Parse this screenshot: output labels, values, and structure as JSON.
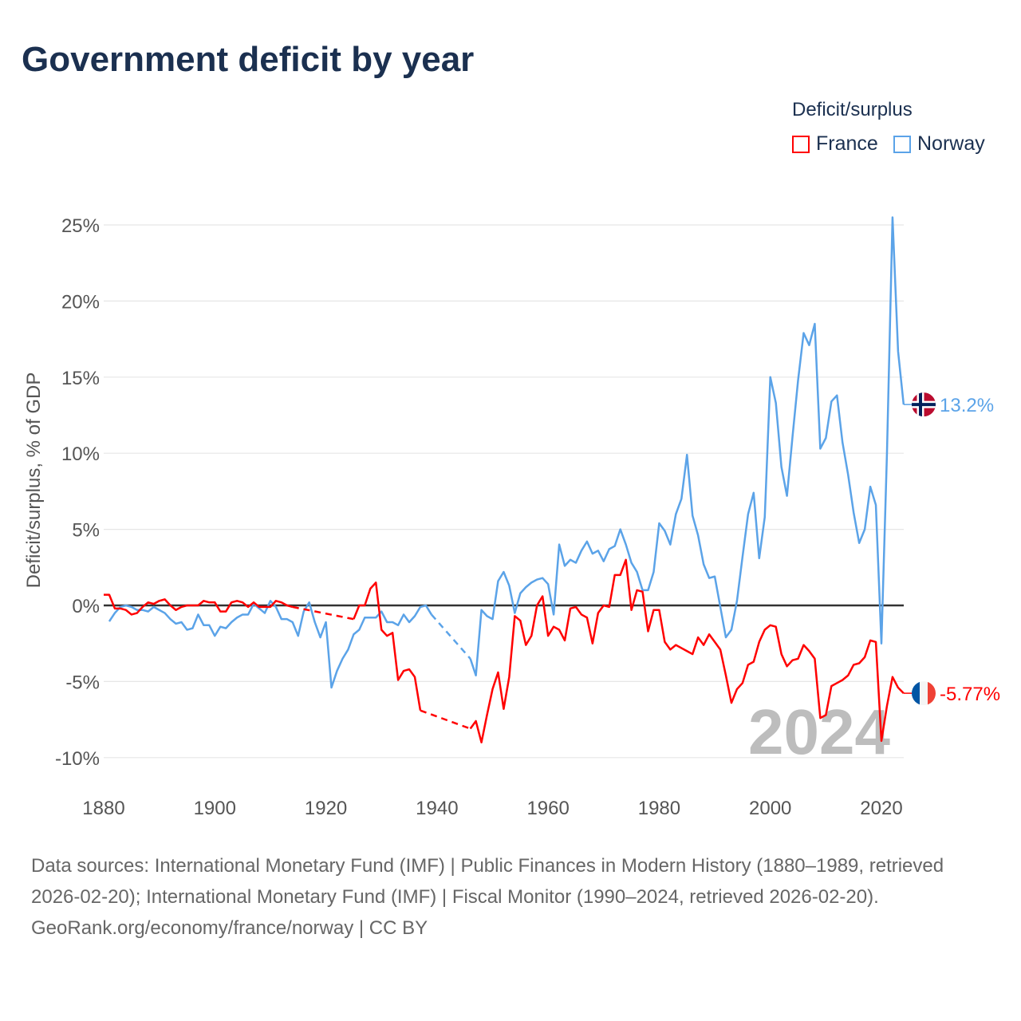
{
  "title": "Government deficit by year",
  "legend": {
    "title": "Deficit/surplus",
    "items": [
      {
        "label": "France",
        "color": "#ff0000"
      },
      {
        "label": "Norway",
        "color": "#5ba3e8"
      }
    ]
  },
  "footer": {
    "sources": "Data sources: International Monetary Fund (IMF) | Public Finances in Modern History (1880–1989, retrieved 2026-02-20); International Monetary Fund (IMF) | Fiscal Monitor (1990–2024, retrieved 2026-02-20).",
    "credit": "GeoRank.org/economy/france/norway | CC BY"
  },
  "chart_data": {
    "type": "line",
    "title": "Government deficit by year",
    "ylabel": "Deficit/surplus, % of GDP",
    "xlabel": "",
    "xlim": [
      1880,
      2024
    ],
    "ylim": [
      -10,
      25
    ],
    "x_ticks": [
      "1880",
      "1900",
      "1920",
      "1940",
      "1960",
      "1980",
      "2000",
      "2020"
    ],
    "y_ticks": [
      "25%",
      "20%",
      "15%",
      "10%",
      "5%",
      "0%",
      "-5%",
      "-10%"
    ],
    "current_year_label": "2024",
    "start_year": 1880,
    "series": [
      {
        "name": "Norway",
        "color": "#5ba3e8",
        "end_label": "13.2%",
        "flag": "norway-flag",
        "values": [
          null,
          -1.05,
          -0.5,
          -0.1,
          0,
          -0.1,
          -0.3,
          -0.3,
          -0.4,
          -0.1,
          -0.3,
          -0.5,
          -0.9,
          -1.2,
          -1.1,
          -1.6,
          -1.5,
          -0.6,
          -1.3,
          -1.3,
          -2.0,
          -1.4,
          -1.5,
          -1.1,
          -0.8,
          -0.6,
          -0.6,
          0.1,
          -0.2,
          -0.5,
          0.3,
          -0.1,
          -0.9,
          -0.9,
          -1.1,
          -2.0,
          -0.4,
          0.2,
          -1.1,
          -2.1,
          -1.1,
          -5.4,
          -4.3,
          -3.5,
          -2.9,
          -1.9,
          -1.6,
          -0.8,
          -0.8,
          -0.8,
          -0.4,
          -1.1,
          -1.1,
          -1.3,
          -0.6,
          -1.1,
          -0.7,
          -0.1,
          0.0,
          -0.6,
          null,
          null,
          null,
          null,
          null,
          null,
          -3.5,
          -4.6,
          -0.3,
          -0.7,
          -0.9,
          1.6,
          2.2,
          1.3,
          -0.5,
          0.8,
          1.2,
          1.5,
          1.7,
          1.8,
          1.4,
          -0.6,
          4.0,
          2.6,
          3.0,
          2.8,
          3.6,
          4.2,
          3.4,
          3.6,
          2.9,
          3.7,
          3.9,
          5.0,
          4.0,
          2.8,
          2.2,
          1.0,
          1.0,
          2.2,
          5.4,
          4.9,
          4.0,
          6.0,
          7.0,
          9.9,
          5.9,
          4.6,
          2.7,
          1.8,
          1.9,
          -0.1,
          -2.1,
          -1.6,
          0.3,
          3.2,
          6.0,
          7.4,
          3.1,
          5.8,
          15.0,
          13.3,
          9.1,
          7.2,
          11.1,
          14.8,
          17.9,
          17.1,
          18.5,
          10.3,
          11.0,
          13.4,
          13.8,
          10.7,
          8.6,
          6.1,
          4.1,
          5.0,
          7.8,
          6.6,
          -2.5,
          10.0,
          25.5,
          16.7,
          13.2
        ]
      },
      {
        "name": "France",
        "color": "#ff0000",
        "end_label": "-5.77%",
        "flag": "france-flag",
        "values": [
          0.7,
          0.7,
          -0.2,
          -0.2,
          -0.3,
          -0.6,
          -0.5,
          -0.1,
          0.2,
          0.1,
          0.3,
          0.4,
          0.0,
          -0.3,
          -0.1,
          0.0,
          0.0,
          0.0,
          0.3,
          0.2,
          0.2,
          -0.4,
          -0.4,
          0.2,
          0.3,
          0.2,
          -0.1,
          0.2,
          -0.1,
          -0.1,
          -0.1,
          0.3,
          0.2,
          0.0,
          -0.1,
          null,
          null,
          null,
          null,
          null,
          null,
          null,
          null,
          null,
          null,
          -0.9,
          0.0,
          0.0,
          1.1,
          1.5,
          -1.6,
          -2.0,
          -1.8,
          -4.9,
          -4.3,
          -4.2,
          -4.7,
          -6.9,
          null,
          null,
          null,
          null,
          null,
          null,
          null,
          null,
          -8.1,
          -7.6,
          -9.0,
          -7.2,
          -5.5,
          -4.4,
          -6.8,
          -4.7,
          -0.7,
          -1.0,
          -2.6,
          -2.0,
          0.0,
          0.6,
          -2.0,
          -1.4,
          -1.6,
          -2.3,
          -0.2,
          -0.1,
          -0.6,
          -0.8,
          -2.5,
          -0.5,
          0.0,
          -0.1,
          2.0,
          2.0,
          3.0,
          -0.3,
          1.0,
          0.9,
          -1.7,
          -0.3,
          -0.3,
          -2.4,
          -2.9,
          -2.6,
          -2.8,
          -3.0,
          -3.2,
          -2.1,
          -2.6,
          -1.9,
          -2.4,
          -2.9,
          -4.6,
          -6.4,
          -5.5,
          -5.1,
          -3.9,
          -3.7,
          -2.4,
          -1.6,
          -1.3,
          -1.4,
          -3.2,
          -4.0,
          -3.6,
          -3.5,
          -2.6,
          -3.0,
          -3.5,
          -7.4,
          -7.2,
          -5.3,
          -5.1,
          -4.9,
          -4.6,
          -3.9,
          -3.8,
          -3.4,
          -2.3,
          -2.4,
          -8.9,
          -6.6,
          -4.7,
          -5.4,
          -5.77
        ]
      }
    ],
    "grid": true,
    "legend_position": "top-right"
  }
}
